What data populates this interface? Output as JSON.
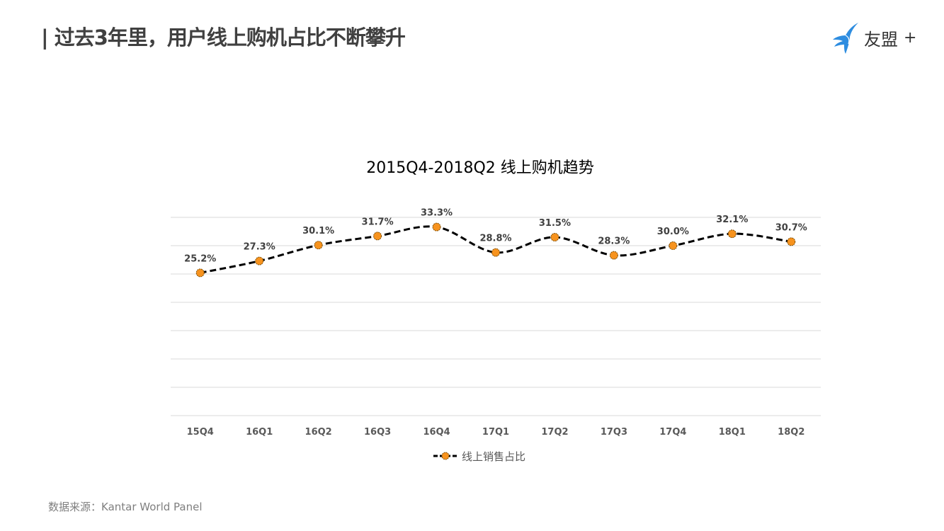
{
  "header": {
    "title": "| 过去3年里，用户线上购机占比不断攀升",
    "logo_text": "友盟",
    "logo_plus": "+"
  },
  "chart_data": {
    "type": "line",
    "title": "2015Q4-2018Q2 线上购机趋势",
    "categories": [
      "15Q4",
      "16Q1",
      "16Q2",
      "16Q3",
      "16Q4",
      "17Q1",
      "17Q2",
      "17Q3",
      "17Q4",
      "18Q1",
      "18Q2"
    ],
    "series": [
      {
        "name": "线上销售占比",
        "values": [
          25.2,
          27.3,
          30.1,
          31.7,
          33.3,
          28.8,
          31.5,
          28.3,
          30.0,
          32.1,
          30.7
        ],
        "labels": [
          "25.2%",
          "27.3%",
          "30.1%",
          "31.7%",
          "33.3%",
          "28.8%",
          "31.5%",
          "28.3%",
          "30.0%",
          "32.1%",
          "30.7%"
        ],
        "line_color": "#000000",
        "marker_color": "#F7931E",
        "line_style": "dashed",
        "smoothed": true
      }
    ],
    "ylim": [
      0,
      35
    ],
    "ytick_step": 5,
    "y_axis_labels_shown": false,
    "grid": true,
    "legend": "bottom"
  },
  "footer": {
    "source": "数据来源：Kantar World Panel"
  }
}
